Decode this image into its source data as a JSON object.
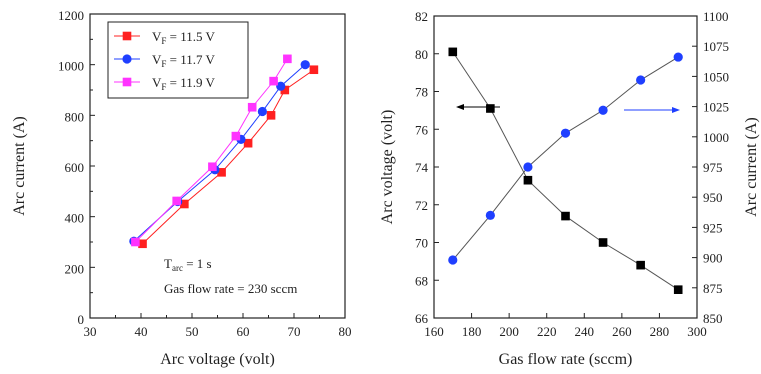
{
  "chart_data": [
    {
      "type": "line",
      "xlabel": "Arc voltage (volt)",
      "ylabel": "Arc current (A)",
      "xlim": [
        30,
        80
      ],
      "ylim": [
        0,
        1200
      ],
      "xticks": [
        30,
        40,
        50,
        60,
        70,
        80
      ],
      "yticks": [
        0,
        200,
        400,
        600,
        800,
        1000,
        1200
      ],
      "grid": false,
      "legend": {
        "placement": "top-left",
        "entries": [
          {
            "prefix": "V",
            "sub": "F",
            "suffix": " = 11.5 V"
          },
          {
            "prefix": "V",
            "sub": "F",
            "suffix": " = 11.7 V"
          },
          {
            "prefix": "V",
            "sub": "F",
            "suffix": " = 11.9 V"
          }
        ]
      },
      "annotations": {
        "tarc": {
          "prefix": "T",
          "sub": "arc",
          "suffix": " = 1 s"
        },
        "gas": "Gas flow rate = 230 sccm"
      },
      "series": [
        {
          "name": "VF = 11.5 V",
          "color": "#ff2020",
          "marker": "square",
          "x": [
            40.3,
            48.5,
            55.8,
            61.0,
            65.5,
            68.2,
            73.9
          ],
          "y": [
            293,
            450,
            575,
            690,
            800,
            900,
            980
          ]
        },
        {
          "name": "VF = 11.7 V",
          "color": "#1f3fff",
          "marker": "circle",
          "x": [
            38.6,
            47.2,
            54.5,
            59.6,
            63.8,
            67.4,
            72.2
          ],
          "y": [
            303,
            460,
            585,
            705,
            815,
            915,
            1000
          ]
        },
        {
          "name": "VF = 11.9 V",
          "color": "#ff33ff",
          "marker": "square",
          "x": [
            38.9,
            47.0,
            54.0,
            58.6,
            61.8,
            66.0,
            68.7
          ],
          "y": [
            300,
            462,
            597,
            718,
            832,
            935,
            1023
          ]
        }
      ]
    },
    {
      "type": "line",
      "xlabel": "Gas flow rate (sccm)",
      "ylabel": "Arc voltage (volt)",
      "y2label": "Arc current (A)",
      "xlim": [
        160,
        300
      ],
      "ylim": [
        66,
        82
      ],
      "y2lim": [
        850,
        1100
      ],
      "xticks": [
        160,
        180,
        200,
        220,
        240,
        260,
        280,
        300
      ],
      "yticks": [
        66,
        68,
        70,
        72,
        74,
        76,
        78,
        80,
        82
      ],
      "y2ticks": [
        850,
        875,
        900,
        925,
        950,
        975,
        1000,
        1025,
        1050,
        1075,
        1100
      ],
      "grid": false,
      "series": [
        {
          "name": "",
          "axis": "left",
          "color": "#000000",
          "marker": "square",
          "x": [
            170,
            190,
            210,
            230,
            250,
            270,
            290
          ],
          "y": [
            80.1,
            77.1,
            73.3,
            71.4,
            70.0,
            68.8,
            67.5
          ]
        },
        {
          "name": "",
          "axis": "right",
          "color": "#1f3fff",
          "marker": "circle",
          "x": [
            170,
            190,
            210,
            230,
            250,
            270,
            290
          ],
          "y": [
            898,
            935,
            975,
            1003,
            1022,
            1047,
            1066
          ]
        }
      ]
    }
  ]
}
